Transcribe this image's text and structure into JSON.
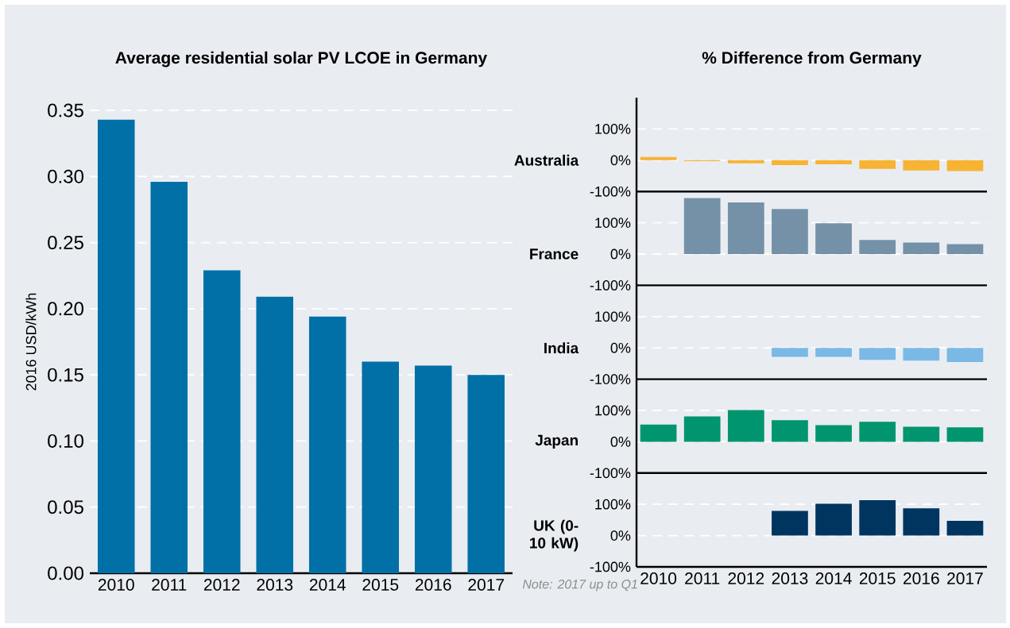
{
  "chart_data": [
    {
      "type": "bar",
      "title": "Average residential solar PV LCOE in Germany",
      "ylabel": "2016 USD/kWh",
      "categories": [
        "2010",
        "2011",
        "2012",
        "2013",
        "2014",
        "2015",
        "2016",
        "2017"
      ],
      "values": [
        0.343,
        0.296,
        0.229,
        0.209,
        0.194,
        0.16,
        0.157,
        0.15
      ],
      "color": "#0070a6",
      "ylim": [
        0,
        0.35
      ],
      "yticks": [
        {
          "value": 0,
          "label": "0.00"
        },
        {
          "value": 0.05,
          "label": "0.05"
        },
        {
          "value": 0.1,
          "label": "0.10"
        },
        {
          "value": 0.15,
          "label": "0.15"
        },
        {
          "value": 0.2,
          "label": "0.20"
        },
        {
          "value": 0.25,
          "label": "0.25"
        },
        {
          "value": 0.3,
          "label": "0.30"
        },
        {
          "value": 0.35,
          "label": "0.35"
        }
      ],
      "grid": "y",
      "annotations": [
        "Note: 2017 up to Q1"
      ]
    },
    {
      "type": "bar",
      "title": "% Difference from Germany",
      "ylabel": "Australia",
      "categories": [
        "2010",
        "2011",
        "2012",
        "2013",
        "2014",
        "2015",
        "2016",
        "2017"
      ],
      "values": [
        10,
        -3,
        -10,
        -16,
        -13,
        -28,
        -33,
        -35
      ],
      "color": "#f7b334",
      "ylim": [
        -100,
        200
      ],
      "yticks": [
        {
          "value": -100,
          "label": "-100%"
        },
        {
          "value": 0,
          "label": "0%"
        },
        {
          "value": 100,
          "label": "100%"
        }
      ],
      "grid": "y",
      "tick_labels": "y"
    },
    {
      "type": "bar",
      "ylabel": "France",
      "categories": [
        "2010",
        "2011",
        "2012",
        "2013",
        "2014",
        "2015",
        "2016",
        "2017"
      ],
      "values": [
        null,
        179,
        165,
        144,
        98,
        45,
        37,
        32
      ],
      "color": "#7591a8",
      "ylim": [
        -100,
        200
      ],
      "yticks": [
        {
          "value": -100,
          "label": "-100%"
        },
        {
          "value": 0,
          "label": "0%"
        },
        {
          "value": 100,
          "label": "100%"
        }
      ],
      "grid": "y",
      "tick_labels": "y"
    },
    {
      "type": "bar",
      "ylabel": "India",
      "categories": [
        "2010",
        "2011",
        "2012",
        "2013",
        "2014",
        "2015",
        "2016",
        "2017"
      ],
      "values": [
        null,
        null,
        null,
        -29,
        -29,
        -38,
        -41,
        -45
      ],
      "color": "#7ab9e6",
      "ylim": [
        -100,
        200
      ],
      "yticks": [
        {
          "value": -100,
          "label": "-100%"
        },
        {
          "value": 0,
          "label": "0%"
        },
        {
          "value": 100,
          "label": "100%"
        }
      ],
      "grid": "y",
      "tick_labels": "y"
    },
    {
      "type": "bar",
      "ylabel": "Japan",
      "categories": [
        "2010",
        "2011",
        "2012",
        "2013",
        "2014",
        "2015",
        "2016",
        "2017"
      ],
      "values": [
        55,
        81,
        101,
        69,
        53,
        64,
        48,
        46
      ],
      "color": "#00956e",
      "ylim": [
        -100,
        200
      ],
      "yticks": [
        {
          "value": -100,
          "label": "-100%"
        },
        {
          "value": 0,
          "label": "0%"
        },
        {
          "value": 100,
          "label": "100%"
        }
      ],
      "grid": "y",
      "tick_labels": "y"
    },
    {
      "type": "bar",
      "ylabel": "UK (0-10 kW)",
      "categories": [
        "2010",
        "2011",
        "2012",
        "2013",
        "2014",
        "2015",
        "2016",
        "2017"
      ],
      "values": [
        null,
        null,
        null,
        79,
        102,
        113,
        87,
        47
      ],
      "color": "#00355f",
      "ylim": [
        -100,
        200
      ],
      "yticks": [
        {
          "value": -100,
          "label": "-100%"
        },
        {
          "value": 0,
          "label": "0%"
        },
        {
          "value": 100,
          "label": "100%"
        }
      ],
      "grid": "y"
    }
  ]
}
